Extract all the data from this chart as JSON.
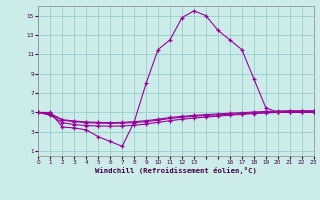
{
  "xlabel": "Windchill (Refroidissement éolien,°C)",
  "background_color": "#ccecea",
  "grid_color": "#99cccc",
  "line_color": "#990099",
  "x_main": [
    0,
    1,
    2,
    3,
    4,
    5,
    6,
    7,
    8,
    9,
    10,
    11,
    12,
    13,
    14,
    15,
    16,
    17,
    18,
    19,
    20,
    21,
    22,
    23
  ],
  "y_main": [
    5.0,
    5.0,
    3.5,
    3.4,
    3.2,
    2.5,
    2.0,
    1.5,
    4.0,
    8.0,
    11.5,
    12.5,
    14.8,
    15.5,
    15.0,
    13.5,
    12.5,
    11.5,
    8.5,
    5.5,
    5.0,
    5.0,
    5.0,
    5.0
  ],
  "x_flat1": [
    0,
    1,
    2,
    3,
    4,
    5,
    6,
    7,
    8,
    9,
    10,
    11,
    12,
    13,
    14,
    15,
    16,
    17,
    18,
    19,
    20,
    21,
    22,
    23
  ],
  "y_flat1": [
    5.0,
    4.8,
    4.2,
    4.05,
    3.95,
    3.9,
    3.88,
    3.9,
    3.95,
    4.05,
    4.2,
    4.38,
    4.5,
    4.6,
    4.68,
    4.75,
    4.82,
    4.88,
    4.95,
    5.0,
    5.05,
    5.1,
    5.1,
    5.1
  ],
  "x_flat2": [
    0,
    1,
    2,
    3,
    4,
    5,
    6,
    7,
    8,
    9,
    10,
    11,
    12,
    13,
    14,
    15,
    16,
    17,
    18,
    19,
    20,
    21,
    22,
    23
  ],
  "y_flat2": [
    5.0,
    4.7,
    3.95,
    3.75,
    3.65,
    3.6,
    3.58,
    3.6,
    3.68,
    3.8,
    3.98,
    4.15,
    4.3,
    4.42,
    4.52,
    4.62,
    4.72,
    4.8,
    4.88,
    4.95,
    5.0,
    5.05,
    5.05,
    5.05
  ],
  "x_flat3": [
    0,
    1,
    2,
    3,
    4,
    5,
    6,
    7,
    8,
    9,
    10,
    11,
    12,
    13,
    14,
    15,
    16,
    17,
    18,
    19,
    20,
    21,
    22,
    23
  ],
  "y_flat3": [
    5.0,
    4.9,
    4.25,
    4.12,
    4.02,
    3.97,
    3.95,
    3.97,
    4.05,
    4.15,
    4.3,
    4.48,
    4.6,
    4.7,
    4.78,
    4.85,
    4.92,
    4.98,
    5.05,
    5.1,
    5.15,
    5.18,
    5.18,
    5.18
  ],
  "xlim": [
    0,
    23
  ],
  "ylim": [
    0.5,
    16.0
  ],
  "xtick_positions": [
    0,
    1,
    2,
    3,
    4,
    5,
    6,
    7,
    8,
    9,
    10,
    11,
    12,
    13,
    14,
    15,
    16,
    17,
    18,
    19,
    20,
    21,
    22,
    23
  ],
  "xtick_labels": [
    "0",
    "1",
    "2",
    "3",
    "4",
    "5",
    "6",
    "7",
    "8",
    "9",
    "10",
    "11",
    "12",
    "13",
    "",
    "",
    "16",
    "17",
    "18",
    "19",
    "20",
    "21",
    "22",
    "23"
  ],
  "yticks": [
    1,
    3,
    5,
    7,
    9,
    11,
    13,
    15
  ]
}
